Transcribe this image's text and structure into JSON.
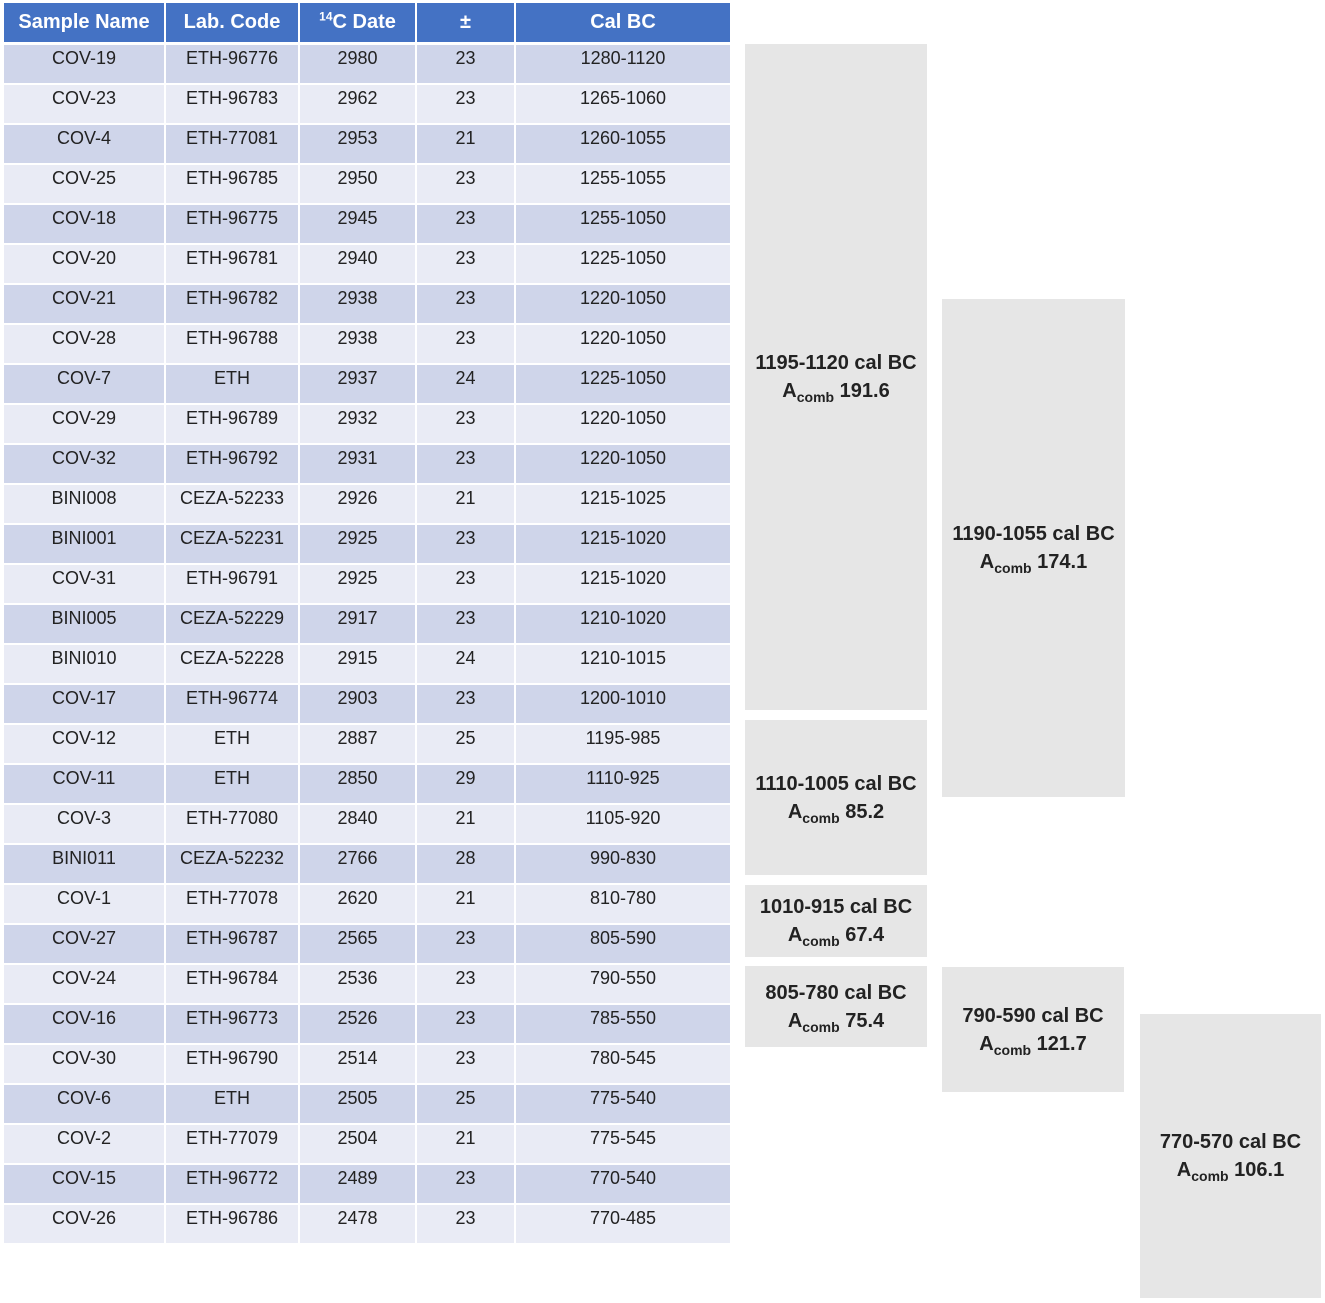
{
  "table": {
    "headers": {
      "sample_name": "Sample Name",
      "lab_code": "Lab. Code",
      "c14_sup": "14",
      "c14_text": "C Date",
      "pm": "±",
      "cal_bc": "Cal BC"
    },
    "rows": [
      [
        "COV-19",
        "ETH-96776",
        "2980",
        "23",
        "1280-1120"
      ],
      [
        "COV-23",
        "ETH-96783",
        "2962",
        "23",
        "1265-1060"
      ],
      [
        "COV-4",
        "ETH-77081",
        "2953",
        "21",
        "1260-1055"
      ],
      [
        "COV-25",
        "ETH-96785",
        "2950",
        "23",
        "1255-1055"
      ],
      [
        "COV-18",
        "ETH-96775",
        "2945",
        "23",
        "1255-1050"
      ],
      [
        "COV-20",
        "ETH-96781",
        "2940",
        "23",
        "1225-1050"
      ],
      [
        "COV-21",
        "ETH-96782",
        "2938",
        "23",
        "1220-1050"
      ],
      [
        "COV-28",
        "ETH-96788",
        "2938",
        "23",
        "1220-1050"
      ],
      [
        "COV-7",
        "ETH",
        "2937",
        "24",
        "1225-1050"
      ],
      [
        "COV-29",
        "ETH-96789",
        "2932",
        "23",
        "1220-1050"
      ],
      [
        "COV-32",
        "ETH-96792",
        "2931",
        "23",
        "1220-1050"
      ],
      [
        "BINI008",
        "CEZA-52233",
        "2926",
        "21",
        "1215-1025"
      ],
      [
        "BINI001",
        "CEZA-52231",
        "2925",
        "23",
        "1215-1020"
      ],
      [
        "COV-31",
        "ETH-96791",
        "2925",
        "23",
        "1215-1020"
      ],
      [
        "BINI005",
        "CEZA-52229",
        "2917",
        "23",
        "1210-1020"
      ],
      [
        "BINI010",
        "CEZA-52228",
        "2915",
        "24",
        "1210-1015"
      ],
      [
        "COV-17",
        "ETH-96774",
        "2903",
        "23",
        "1200-1010"
      ],
      [
        "COV-12",
        "ETH",
        "2887",
        "25",
        "1195-985"
      ],
      [
        "COV-11",
        "ETH",
        "2850",
        "29",
        "1110-925"
      ],
      [
        "COV-3",
        "ETH-77080",
        "2840",
        "21",
        "1105-920"
      ],
      [
        "BINI011",
        "CEZA-52232",
        "2766",
        "28",
        "990-830"
      ],
      [
        "COV-1",
        "ETH-77078",
        "2620",
        "21",
        "810-780"
      ],
      [
        "COV-27",
        "ETH-96787",
        "2565",
        "23",
        "805-590"
      ],
      [
        "COV-24",
        "ETH-96784",
        "2536",
        "23",
        "790-550"
      ],
      [
        "COV-16",
        "ETH-96773",
        "2526",
        "23",
        "785-550"
      ],
      [
        "COV-30",
        "ETH-96790",
        "2514",
        "23",
        "780-545"
      ],
      [
        "COV-6",
        "ETH",
        "2505",
        "25",
        "775-540"
      ],
      [
        "COV-2",
        "ETH-77079",
        "2504",
        "21",
        "775-545"
      ],
      [
        "COV-15",
        "ETH-96772",
        "2489",
        "23",
        "770-540"
      ],
      [
        "COV-26",
        "ETH-96786",
        "2478",
        "23",
        "770-485"
      ]
    ]
  },
  "groups": [
    {
      "range": "1195-1120 cal BC",
      "a_label": "A",
      "a_sub": "comb",
      "a_value": "191.6"
    },
    {
      "range": "1110-1005 cal BC",
      "a_label": "A",
      "a_sub": "comb",
      "a_value": "85.2"
    },
    {
      "range": "1010-915 cal BC",
      "a_label": "A",
      "a_sub": "comb",
      "a_value": "67.4"
    },
    {
      "range": "805-780 cal BC",
      "a_label": "A",
      "a_sub": "comb",
      "a_value": "75.4"
    },
    {
      "range": "1190-1055 cal BC",
      "a_label": "A",
      "a_sub": "comb",
      "a_value": "174.1"
    },
    {
      "range": "790-590 cal BC",
      "a_label": "A",
      "a_sub": "comb",
      "a_value": "121.7"
    },
    {
      "range": "770-570 cal BC",
      "a_label": "A",
      "a_sub": "comb",
      "a_value": "106.1"
    }
  ]
}
